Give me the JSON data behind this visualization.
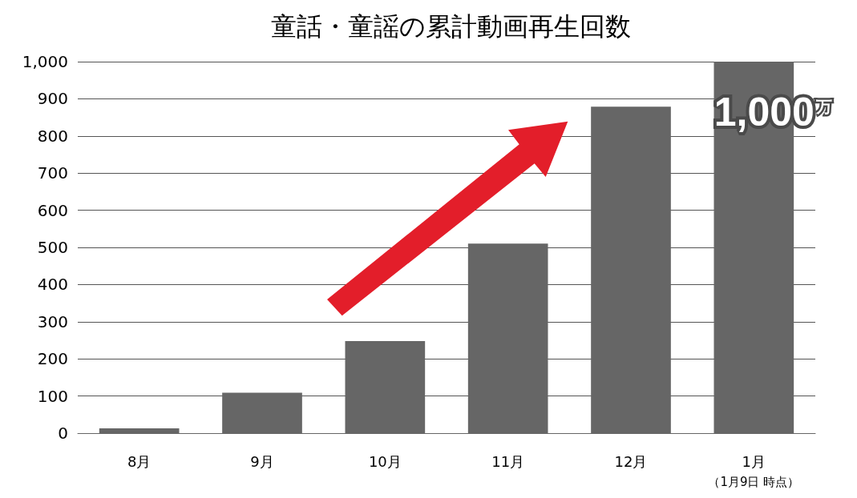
{
  "chart_data": {
    "type": "bar",
    "title": "童話・童謡の累計動画再生回数",
    "categories": [
      "8月",
      "9月",
      "10月",
      "11月",
      "12月",
      "1月"
    ],
    "values": [
      13,
      109,
      248,
      510,
      879,
      1000
    ],
    "color": "#666666",
    "value_labels": [
      null,
      null,
      null,
      null,
      null,
      "1,000万"
    ],
    "ylim": [
      0,
      1000
    ],
    "yticks": [
      0,
      100,
      200,
      300,
      400,
      500,
      600,
      700,
      800,
      900,
      {
        "value": 1000,
        "label": "1,000"
      }
    ],
    "grid": "y",
    "annotations": [
      "（1月9日 時点）"
    ]
  }
}
